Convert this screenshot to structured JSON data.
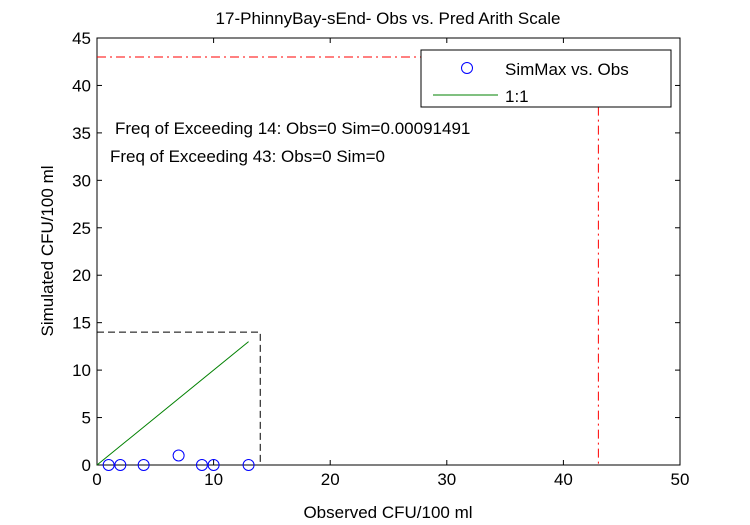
{
  "chart_data": {
    "type": "scatter",
    "title": "17-PhinnyBay-sEnd- Obs vs. Pred Arith Scale",
    "xlabel": "Observed CFU/100 ml",
    "ylabel": "Simulated CFU/100 ml",
    "xlim": [
      0,
      50
    ],
    "ylim": [
      0,
      45
    ],
    "xticks": [
      0,
      10,
      20,
      30,
      40,
      50
    ],
    "yticks": [
      0,
      5,
      10,
      15,
      20,
      25,
      30,
      35,
      40,
      45
    ],
    "grid": false,
    "legend_position": "top-right",
    "series": [
      {
        "name": "SimMax vs. Obs",
        "kind": "scatter",
        "marker": "circle",
        "color": "#0000ff",
        "x": [
          1,
          2,
          4,
          7,
          9,
          10,
          13
        ],
        "y": [
          0,
          0,
          0,
          1,
          0,
          0,
          0
        ]
      },
      {
        "name": "1:1",
        "kind": "line",
        "color": "#008000",
        "x": [
          0,
          13
        ],
        "y": [
          0,
          13
        ]
      }
    ],
    "reference_lines": [
      {
        "kind": "box",
        "value": 14,
        "style": "dashed",
        "color": "#000000"
      },
      {
        "kind": "box",
        "value": 43,
        "style": "dash-dot",
        "color": "#ff0000"
      }
    ],
    "annotations": [
      "Freq of Exceeding 14: Obs=0 Sim=0.00091491",
      "Freq of Exceeding 43: Obs=0 Sim=0"
    ]
  }
}
